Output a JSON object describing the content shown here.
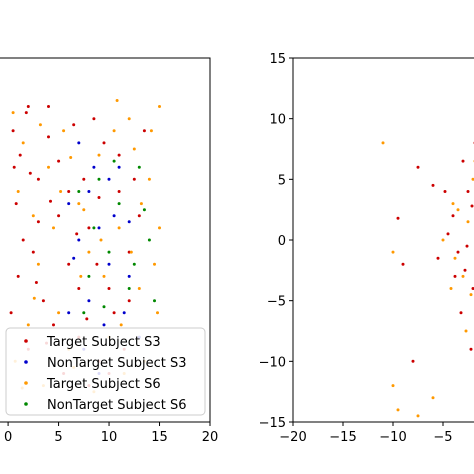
{
  "chart_data": [
    {
      "type": "scatter",
      "title": "",
      "xlabel": "",
      "ylabel": "",
      "xlim": [
        -1,
        20
      ],
      "ylim": [
        -15,
        15
      ],
      "x_ticks": [
        0,
        5,
        10,
        15,
        20
      ],
      "x_tick_labels": [
        "0",
        "5",
        "10",
        "15",
        "20"
      ],
      "grid": false,
      "legend_position": "lower-right",
      "series": [
        {
          "name": "Target Subject S3",
          "color": "#cc0000",
          "points": [
            [
              0.5,
              9
            ],
            [
              1.2,
              7
            ],
            [
              2,
              11
            ],
            [
              3,
              5
            ],
            [
              0.8,
              3
            ],
            [
              4,
              8.5
            ],
            [
              5,
              2
            ],
            [
              2.5,
              -1
            ],
            [
              1,
              -3
            ],
            [
              3.5,
              -5
            ],
            [
              6,
              -2
            ],
            [
              7.5,
              5
            ],
            [
              8,
              1
            ],
            [
              9,
              3.5
            ],
            [
              10,
              -4
            ],
            [
              11,
              7
            ],
            [
              12,
              -1
            ],
            [
              13,
              2
            ],
            [
              6.5,
              9.5
            ],
            [
              4.5,
              -7
            ],
            [
              2,
              -9
            ],
            [
              5.5,
              -11
            ],
            [
              7,
              -8
            ],
            [
              9,
              -10
            ],
            [
              10.5,
              -6
            ],
            [
              11.5,
              -9
            ],
            [
              12.5,
              5
            ],
            [
              8.5,
              10
            ],
            [
              3,
              1.5
            ],
            [
              1.5,
              0
            ],
            [
              0.3,
              -6
            ],
            [
              6,
              4
            ],
            [
              7,
              -4
            ],
            [
              4,
              11
            ],
            [
              2.8,
              -3.5
            ],
            [
              9.5,
              8
            ],
            [
              8,
              -12
            ],
            [
              5,
              6.5
            ],
            [
              3.8,
              -8.5
            ],
            [
              1.8,
              10.5
            ],
            [
              10,
              -11
            ],
            [
              11,
              4
            ],
            [
              4.2,
              3.2
            ],
            [
              0.6,
              6
            ],
            [
              2.2,
              5.5
            ],
            [
              6.8,
              0.5
            ],
            [
              8.8,
              -2
            ],
            [
              13.5,
              9
            ],
            [
              12,
              -5
            ],
            [
              7.8,
              -6.5
            ]
          ]
        },
        {
          "name": "NonTarget Subject S3",
          "color": "#0000cc",
          "points": [
            [
              6,
              3
            ],
            [
              7,
              0
            ],
            [
              8,
              -5
            ],
            [
              9,
              1
            ],
            [
              10,
              -2
            ],
            [
              11,
              6
            ],
            [
              12,
              -3
            ],
            [
              7.5,
              -9
            ],
            [
              8.5,
              6
            ],
            [
              9.5,
              -7
            ],
            [
              6.5,
              -1.5
            ],
            [
              10.5,
              2
            ],
            [
              11.5,
              -6
            ],
            [
              13,
              -8
            ],
            [
              7,
              8
            ],
            [
              6,
              -6
            ],
            [
              9,
              -11
            ],
            [
              12,
              1.5
            ],
            [
              8,
              4
            ],
            [
              10,
              5
            ]
          ]
        },
        {
          "name": "Target Subject S6",
          "color": "#ff9900",
          "points": [
            [
              0.5,
              10.5
            ],
            [
              1.5,
              8
            ],
            [
              2.5,
              2
            ],
            [
              3,
              -2
            ],
            [
              4,
              6
            ],
            [
              5,
              -6
            ],
            [
              5.5,
              9
            ],
            [
              6,
              -9
            ],
            [
              7,
              3
            ],
            [
              8,
              -1
            ],
            [
              9,
              7
            ],
            [
              10,
              -8
            ],
            [
              11,
              1
            ],
            [
              12,
              10
            ],
            [
              13,
              -4
            ],
            [
              14,
              5
            ],
            [
              14.5,
              -2
            ],
            [
              15,
              11
            ],
            [
              13.5,
              -10
            ],
            [
              12.5,
              7.5
            ],
            [
              11.5,
              -11
            ],
            [
              10.5,
              9
            ],
            [
              9.5,
              -3
            ],
            [
              8.5,
              -12.5
            ],
            [
              7.5,
              2.5
            ],
            [
              6.5,
              -10.5
            ],
            [
              4.5,
              1
            ],
            [
              3.5,
              -12
            ],
            [
              2,
              -7
            ],
            [
              1,
              4
            ],
            [
              0.7,
              -10
            ],
            [
              3.2,
              9.5
            ],
            [
              5.2,
              4
            ],
            [
              7.2,
              -3
            ],
            [
              9.2,
              0
            ],
            [
              11.2,
              -7
            ],
            [
              13.2,
              3
            ],
            [
              14.2,
              9
            ],
            [
              12.2,
              -1
            ],
            [
              14.8,
              -6
            ],
            [
              15,
              1
            ],
            [
              10.8,
              11.5
            ],
            [
              6.2,
              6.8
            ],
            [
              2.6,
              -4.8
            ],
            [
              1.4,
              -12.2
            ]
          ]
        },
        {
          "name": "NonTarget Subject S6",
          "color": "#008800",
          "points": [
            [
              7,
              4
            ],
            [
              8,
              -3
            ],
            [
              9,
              5
            ],
            [
              10,
              -1
            ],
            [
              11,
              3
            ],
            [
              12,
              -4
            ],
            [
              13,
              6
            ],
            [
              14,
              0
            ],
            [
              7.5,
              -6
            ],
            [
              8.5,
              1
            ],
            [
              9.5,
              -5.5
            ],
            [
              10.5,
              6.5
            ],
            [
              12.5,
              -2
            ],
            [
              13.5,
              2.5
            ],
            [
              14.5,
              -5
            ]
          ]
        }
      ]
    },
    {
      "type": "scatter",
      "title": "",
      "xlabel": "",
      "ylabel": "",
      "xlim": [
        -20,
        0
      ],
      "ylim": [
        -15,
        15
      ],
      "x_ticks": [
        -20,
        -15,
        -10,
        -5
      ],
      "x_tick_labels": [
        "−20",
        "−15",
        "−10",
        "−5"
      ],
      "y_ticks": [
        -15,
        -10,
        -5,
        0,
        5,
        10,
        15
      ],
      "y_tick_labels": [
        "−15",
        "−10",
        "−5",
        "0",
        "5",
        "10",
        "15"
      ],
      "grid": false,
      "series": [
        {
          "color": "#cc0000",
          "points": [
            [
              -9,
              -2
            ],
            [
              -7.5,
              6
            ],
            [
              -6,
              4.5
            ],
            [
              -4,
              2
            ],
            [
              -3.5,
              -1
            ],
            [
              -2.5,
              4
            ],
            [
              -2,
              -4
            ],
            [
              -3,
              6.5
            ],
            [
              -1.5,
              1
            ],
            [
              -1,
              -7
            ],
            [
              -2.8,
              -2.5
            ],
            [
              -4.5,
              0.5
            ],
            [
              -1.2,
              -12
            ],
            [
              -2.2,
              -9
            ],
            [
              -0.8,
              3
            ],
            [
              -1.8,
              8
            ],
            [
              -3.2,
              -6
            ],
            [
              -8,
              -10
            ],
            [
              -4.8,
              4
            ],
            [
              -9.5,
              1.8
            ],
            [
              -2.6,
              -0.5
            ],
            [
              -1.4,
              5.5
            ],
            [
              -3.8,
              -3
            ],
            [
              -0.9,
              -5.5
            ],
            [
              -2.1,
              2.8
            ],
            [
              -5.5,
              -1.5
            ]
          ]
        },
        {
          "color": "#ff9900",
          "points": [
            [
              -11,
              8
            ],
            [
              -10,
              -12
            ],
            [
              -9.5,
              -14
            ],
            [
              -6,
              -13
            ],
            [
              -4,
              3
            ],
            [
              -3,
              -3
            ],
            [
              -2,
              5
            ],
            [
              -1.5,
              -6
            ],
            [
              -2.5,
              1.5
            ],
            [
              -1,
              0
            ],
            [
              -3.8,
              -1.5
            ],
            [
              -2.2,
              -4.5
            ],
            [
              -1.8,
              6.5
            ],
            [
              -3.5,
              2.5
            ],
            [
              -10,
              -1
            ],
            [
              -7.5,
              -14.5
            ],
            [
              -1.2,
              3.8
            ],
            [
              -2.7,
              -7.5
            ],
            [
              -0.7,
              7
            ],
            [
              -4.2,
              -4
            ],
            [
              -5,
              0
            ],
            [
              -0.5,
              -2.5
            ]
          ]
        }
      ]
    }
  ]
}
